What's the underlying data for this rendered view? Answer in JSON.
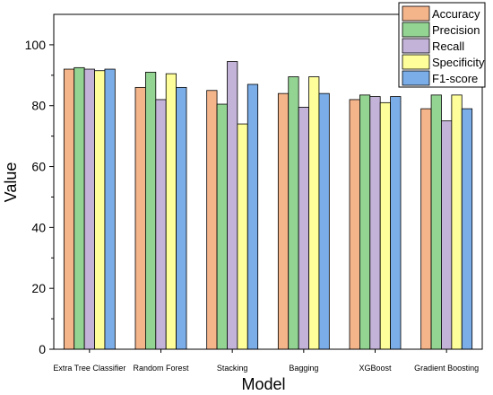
{
  "chart_data": {
    "type": "bar",
    "title": "",
    "xlabel": "Model",
    "ylabel": "Value",
    "ylim": [
      0,
      110
    ],
    "yticks": [
      0,
      20,
      40,
      60,
      80,
      100
    ],
    "grid": false,
    "legend_position": "top-right",
    "categories": [
      "Extra Tree Classifier",
      "Random Forest",
      "Stacking",
      "Bagging",
      "XGBoost",
      "Gradient Boosting"
    ],
    "series": [
      {
        "name": "Accuracy",
        "color": "#f5b58b",
        "values": [
          92.0,
          86.0,
          85.0,
          84.0,
          82.0,
          79.0
        ]
      },
      {
        "name": "Precision",
        "color": "#94d493",
        "values": [
          92.5,
          91.0,
          80.5,
          89.5,
          83.5,
          83.5
        ]
      },
      {
        "name": "Recall",
        "color": "#c3b3d8",
        "values": [
          92.0,
          82.0,
          94.5,
          79.5,
          83.0,
          75.0
        ]
      },
      {
        "name": "Specificity",
        "color": "#fefe9a",
        "values": [
          91.5,
          90.5,
          74.0,
          89.5,
          81.0,
          83.5
        ]
      },
      {
        "name": "F1-score",
        "color": "#7bade8",
        "values": [
          92.0,
          86.0,
          87.0,
          84.0,
          83.0,
          79.0
        ]
      }
    ]
  }
}
